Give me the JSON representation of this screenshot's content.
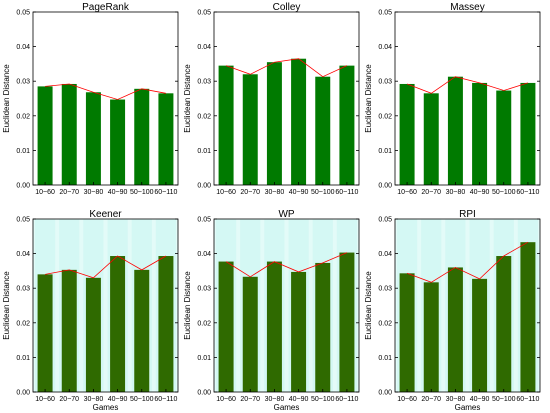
{
  "figure": {
    "background": "#ffffff",
    "bar_color": "#007a00",
    "bar_color_light_bg": "#2f6a00",
    "line_color": "#ff0000",
    "light_bg": "#e3fbf8",
    "band_color": "#c9f5f0"
  },
  "chart_data": [
    {
      "type": "bar",
      "title": "PageRank",
      "xlabel": "",
      "ylabel": "Euclidean Distance",
      "categories": [
        "10~60",
        "20~70",
        "30~80",
        "40~90",
        "50~100",
        "60~110"
      ],
      "values": [
        0.0285,
        0.0292,
        0.0268,
        0.0247,
        0.0278,
        0.0265
      ],
      "ylim": [
        0,
        0.05
      ],
      "yticks": [
        "0.00",
        "0.01",
        "0.02",
        "0.03",
        "0.04",
        "0.05"
      ],
      "trend_line": true,
      "background": "plain"
    },
    {
      "type": "bar",
      "title": "Colley",
      "xlabel": "",
      "ylabel": "Euclidean Distance",
      "categories": [
        "10~60",
        "20~70",
        "30~80",
        "40~90",
        "50~100",
        "60~110"
      ],
      "values": [
        0.0345,
        0.032,
        0.0355,
        0.0365,
        0.0313,
        0.0345
      ],
      "ylim": [
        0,
        0.05
      ],
      "yticks": [
        "0.00",
        "0.01",
        "0.02",
        "0.03",
        "0.04",
        "0.05"
      ],
      "trend_line": true,
      "background": "plain"
    },
    {
      "type": "bar",
      "title": "Massey",
      "xlabel": "",
      "ylabel": "Euclidean Distance",
      "categories": [
        "10~60",
        "20~70",
        "30~80",
        "40~90",
        "50~100",
        "60~110"
      ],
      "values": [
        0.0292,
        0.0265,
        0.0313,
        0.0295,
        0.0273,
        0.0295
      ],
      "ylim": [
        0,
        0.05
      ],
      "yticks": [
        "0.00",
        "0.01",
        "0.02",
        "0.03",
        "0.04",
        "0.05"
      ],
      "trend_line": true,
      "background": "plain"
    },
    {
      "type": "bar",
      "title": "Keener",
      "xlabel": "Games",
      "ylabel": "Euclidean Distance",
      "categories": [
        "10~60",
        "20~70",
        "30~80",
        "40~90",
        "50~100",
        "60~110"
      ],
      "values": [
        0.034,
        0.0353,
        0.033,
        0.0393,
        0.0353,
        0.0393
      ],
      "ylim": [
        0,
        0.05
      ],
      "yticks": [
        "0.00",
        "0.01",
        "0.02",
        "0.03",
        "0.04",
        "0.05"
      ],
      "trend_line": true,
      "background": "shaded"
    },
    {
      "type": "bar",
      "title": "WP",
      "xlabel": "Games",
      "ylabel": "Euclidean Distance",
      "categories": [
        "10~60",
        "20~70",
        "30~80",
        "40~90",
        "50~100",
        "60~110"
      ],
      "values": [
        0.0377,
        0.0333,
        0.0377,
        0.0347,
        0.0373,
        0.0403
      ],
      "ylim": [
        0,
        0.05
      ],
      "yticks": [
        "0.00",
        "0.01",
        "0.02",
        "0.03",
        "0.04",
        "0.05"
      ],
      "trend_line": true,
      "background": "shaded"
    },
    {
      "type": "bar",
      "title": "RPI",
      "xlabel": "Games",
      "ylabel": "Euclidean Distance",
      "categories": [
        "10~60",
        "20~70",
        "30~80",
        "40~90",
        "50~100",
        "60~110"
      ],
      "values": [
        0.0343,
        0.0317,
        0.036,
        0.0327,
        0.0393,
        0.0433
      ],
      "ylim": [
        0,
        0.05
      ],
      "yticks": [
        "0.00",
        "0.01",
        "0.02",
        "0.03",
        "0.04",
        "0.05"
      ],
      "trend_line": true,
      "background": "shaded"
    }
  ]
}
